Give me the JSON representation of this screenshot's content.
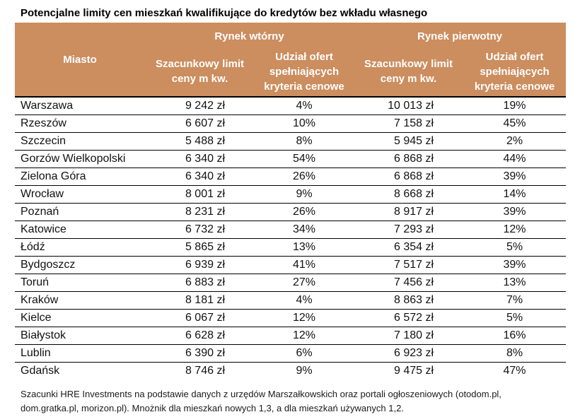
{
  "title": "Potencjalne limity cen mieszkań kwalifikujące do kredytów bez wkładu własnego",
  "table": {
    "group_headers": {
      "secondary_market": "Rynek wtórny",
      "primary_market": "Rynek pierwotny"
    },
    "column_headers": {
      "city": "Miasto",
      "price_limit": "Szacunkowy limit\nceny m kw.",
      "share_offers": "Udział ofert\nspełniających\nkryteria cenowe"
    }
  },
  "chart_data": {
    "type": "table",
    "title": "Potencjalne limity cen mieszkań kwalifikujące do kredytów bez wkładu własnego",
    "group_columns": [
      "Rynek wtórny",
      "Rynek pierwotny"
    ],
    "columns": [
      "Miasto",
      "Szacunkowy limit ceny m kw. (rynek wtórny)",
      "Udział ofert spełniających kryteria cenowe (rynek wtórny)",
      "Szacunkowy limit ceny m kw. (rynek pierwotny)",
      "Udział ofert spełniających kryteria cenowe (rynek pierwotny)"
    ],
    "rows": [
      [
        "Warszawa",
        "9 242 zł",
        "4%",
        "10 013 zł",
        "19%"
      ],
      [
        "Rzeszów",
        "6 607 zł",
        "10%",
        "7 158 zł",
        "45%"
      ],
      [
        "Szczecin",
        "5 488 zł",
        "8%",
        "5 945 zł",
        "2%"
      ],
      [
        "Gorzów Wielkopolski",
        "6 340 zł",
        "54%",
        "6 868 zł",
        "44%"
      ],
      [
        "Zielona Góra",
        "6 340 zł",
        "26%",
        "6 868 zł",
        "39%"
      ],
      [
        "Wrocław",
        "8 001 zł",
        "9%",
        "8 668 zł",
        "14%"
      ],
      [
        "Poznań",
        "8 231 zł",
        "26%",
        "8 917 zł",
        "39%"
      ],
      [
        "Katowice",
        "6 732 zł",
        "34%",
        "7 293 zł",
        "12%"
      ],
      [
        "Łódź",
        "5 865 zł",
        "13%",
        "6 354 zł",
        "5%"
      ],
      [
        "Bydgoszcz",
        "6 939 zł",
        "41%",
        "7 517 zł",
        "39%"
      ],
      [
        "Toruń",
        "6 883 zł",
        "27%",
        "7 456 zł",
        "13%"
      ],
      [
        "Kraków",
        "8 181 zł",
        "4%",
        "8 863 zł",
        "7%"
      ],
      [
        "Kielce",
        "6 067 zł",
        "12%",
        "6 572 zł",
        "5%"
      ],
      [
        "Białystok",
        "6 628 zł",
        "12%",
        "7 180 zł",
        "16%"
      ],
      [
        "Lublin",
        "6 390 zł",
        "6%",
        "6 923 zł",
        "8%"
      ],
      [
        "Gdańsk",
        "8 746 zł",
        "9%",
        "9 475 zł",
        "47%"
      ]
    ]
  },
  "footnote": "Szacunki HRE Investments na podstawie danych z urzędów Marszałkowskich oraz portali ogłoszeniowych (otodom.pl,\ndom.gratka.pl, morizon.pl). Mnożnik dla mieszkań nowych 1,3, a dla mieszkań używanych 1,2.",
  "colors": {
    "header_bg": "#CC8D5F",
    "header_text": "#FFFFFF",
    "body_text": "#111111",
    "row_line": "#000000"
  }
}
